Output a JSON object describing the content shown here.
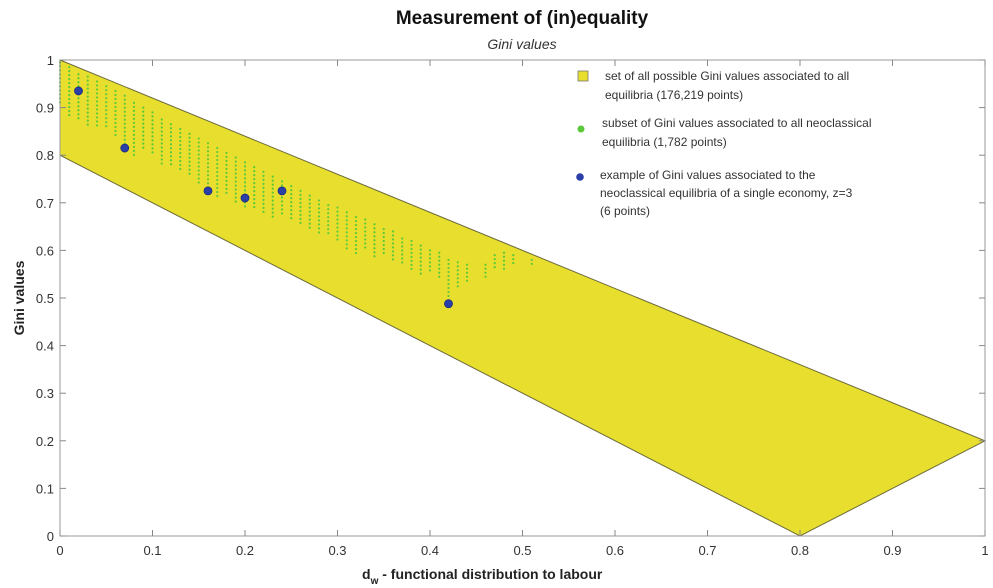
{
  "chart_data": {
    "type": "scatter",
    "title": "Measurement of (in)equality",
    "subtitle": "Gini values",
    "xlabel": "functional distribution to labour",
    "xlabel_symbol": "d",
    "xlabel_subscript": "w",
    "ylabel": "Gini values",
    "xlim": [
      0,
      1
    ],
    "ylim": [
      0,
      1
    ],
    "xticks": [
      "0",
      "0.1",
      "0.2",
      "0.3",
      "0.4",
      "0.5",
      "0.6",
      "0.7",
      "0.8",
      "0.9",
      "1"
    ],
    "yticks": [
      "0",
      "0.1",
      "0.2",
      "0.3",
      "0.4",
      "0.5",
      "0.6",
      "0.7",
      "0.8",
      "0.9",
      "1"
    ],
    "grid": false,
    "legend_position": "top-right",
    "series": [
      {
        "name": "set of all possible Gini values associated to all equilibria (176,219 points)",
        "legend_lines": [
          "set of all possible Gini values associated to all",
          "equilibria (176,219 points)"
        ],
        "kind": "region",
        "color": "#e8de2e",
        "polygon": [
          [
            0,
            1.0
          ],
          [
            1.0,
            0.2
          ],
          [
            0.8,
            0.0
          ],
          [
            0,
            0.8
          ]
        ]
      },
      {
        "name": "subset of Gini values associated to all neoclassical equilibria (1,782 points)",
        "legend_lines": [
          "subset of Gini values associated to all neoclassical",
          "equilibria (1,782 points)"
        ],
        "kind": "points",
        "color": "#5cc93a",
        "columns": [
          {
            "x": 0.0,
            "ymin": 0.91,
            "ymax": 0.995
          },
          {
            "x": 0.01,
            "ymin": 0.88,
            "ymax": 0.985
          },
          {
            "x": 0.02,
            "ymin": 0.87,
            "ymax": 0.97
          },
          {
            "x": 0.03,
            "ymin": 0.86,
            "ymax": 0.965
          },
          {
            "x": 0.04,
            "ymin": 0.86,
            "ymax": 0.955
          },
          {
            "x": 0.05,
            "ymin": 0.86,
            "ymax": 0.945
          },
          {
            "x": 0.06,
            "ymin": 0.84,
            "ymax": 0.935
          },
          {
            "x": 0.07,
            "ymin": 0.82,
            "ymax": 0.925
          },
          {
            "x": 0.08,
            "ymin": 0.8,
            "ymax": 0.91
          },
          {
            "x": 0.09,
            "ymin": 0.81,
            "ymax": 0.9
          },
          {
            "x": 0.1,
            "ymin": 0.8,
            "ymax": 0.89
          },
          {
            "x": 0.11,
            "ymin": 0.78,
            "ymax": 0.875
          },
          {
            "x": 0.12,
            "ymin": 0.78,
            "ymax": 0.865
          },
          {
            "x": 0.13,
            "ymin": 0.77,
            "ymax": 0.855
          },
          {
            "x": 0.14,
            "ymin": 0.76,
            "ymax": 0.845
          },
          {
            "x": 0.15,
            "ymin": 0.74,
            "ymax": 0.835
          },
          {
            "x": 0.16,
            "ymin": 0.72,
            "ymax": 0.825
          },
          {
            "x": 0.17,
            "ymin": 0.71,
            "ymax": 0.815
          },
          {
            "x": 0.18,
            "ymin": 0.72,
            "ymax": 0.805
          },
          {
            "x": 0.19,
            "ymin": 0.7,
            "ymax": 0.795
          },
          {
            "x": 0.2,
            "ymin": 0.69,
            "ymax": 0.785
          },
          {
            "x": 0.21,
            "ymin": 0.69,
            "ymax": 0.775
          },
          {
            "x": 0.22,
            "ymin": 0.68,
            "ymax": 0.765
          },
          {
            "x": 0.23,
            "ymin": 0.67,
            "ymax": 0.755
          },
          {
            "x": 0.24,
            "ymin": 0.67,
            "ymax": 0.745
          },
          {
            "x": 0.25,
            "ymin": 0.66,
            "ymax": 0.735
          },
          {
            "x": 0.26,
            "ymin": 0.65,
            "ymax": 0.725
          },
          {
            "x": 0.27,
            "ymin": 0.64,
            "ymax": 0.715
          },
          {
            "x": 0.28,
            "ymin": 0.63,
            "ymax": 0.705
          },
          {
            "x": 0.29,
            "ymin": 0.63,
            "ymax": 0.695
          },
          {
            "x": 0.3,
            "ymin": 0.62,
            "ymax": 0.69
          },
          {
            "x": 0.31,
            "ymin": 0.6,
            "ymax": 0.68
          },
          {
            "x": 0.32,
            "ymin": 0.59,
            "ymax": 0.67
          },
          {
            "x": 0.33,
            "ymin": 0.6,
            "ymax": 0.665
          },
          {
            "x": 0.34,
            "ymin": 0.58,
            "ymax": 0.655
          },
          {
            "x": 0.35,
            "ymin": 0.59,
            "ymax": 0.645
          },
          {
            "x": 0.36,
            "ymin": 0.58,
            "ymax": 0.64
          },
          {
            "x": 0.37,
            "ymin": 0.57,
            "ymax": 0.625
          },
          {
            "x": 0.38,
            "ymin": 0.56,
            "ymax": 0.62
          },
          {
            "x": 0.39,
            "ymin": 0.55,
            "ymax": 0.61
          },
          {
            "x": 0.4,
            "ymin": 0.55,
            "ymax": 0.6
          },
          {
            "x": 0.41,
            "ymin": 0.54,
            "ymax": 0.595
          },
          {
            "x": 0.42,
            "ymin": 0.5,
            "ymax": 0.58
          },
          {
            "x": 0.43,
            "ymin": 0.52,
            "ymax": 0.575
          },
          {
            "x": 0.44,
            "ymin": 0.53,
            "ymax": 0.57
          },
          {
            "x": 0.46,
            "ymin": 0.54,
            "ymax": 0.57
          },
          {
            "x": 0.47,
            "ymin": 0.56,
            "ymax": 0.59
          },
          {
            "x": 0.48,
            "ymin": 0.56,
            "ymax": 0.595
          },
          {
            "x": 0.49,
            "ymin": 0.57,
            "ymax": 0.59
          },
          {
            "x": 0.51,
            "ymin": 0.57,
            "ymax": 0.58
          }
        ]
      },
      {
        "name": "example of Gini values associated to the neoclassical equilibria of a single economy, z=3 (6 points)",
        "legend_lines": [
          "example of Gini values associated to the",
          "neoclassical equilibria of a single economy, z=3",
          "(6 points)"
        ],
        "kind": "points",
        "color": "#2a3fa8",
        "x": [
          0.02,
          0.07,
          0.16,
          0.2,
          0.24,
          0.42
        ],
        "y": [
          0.935,
          0.815,
          0.725,
          0.71,
          0.725,
          0.488
        ]
      }
    ]
  }
}
